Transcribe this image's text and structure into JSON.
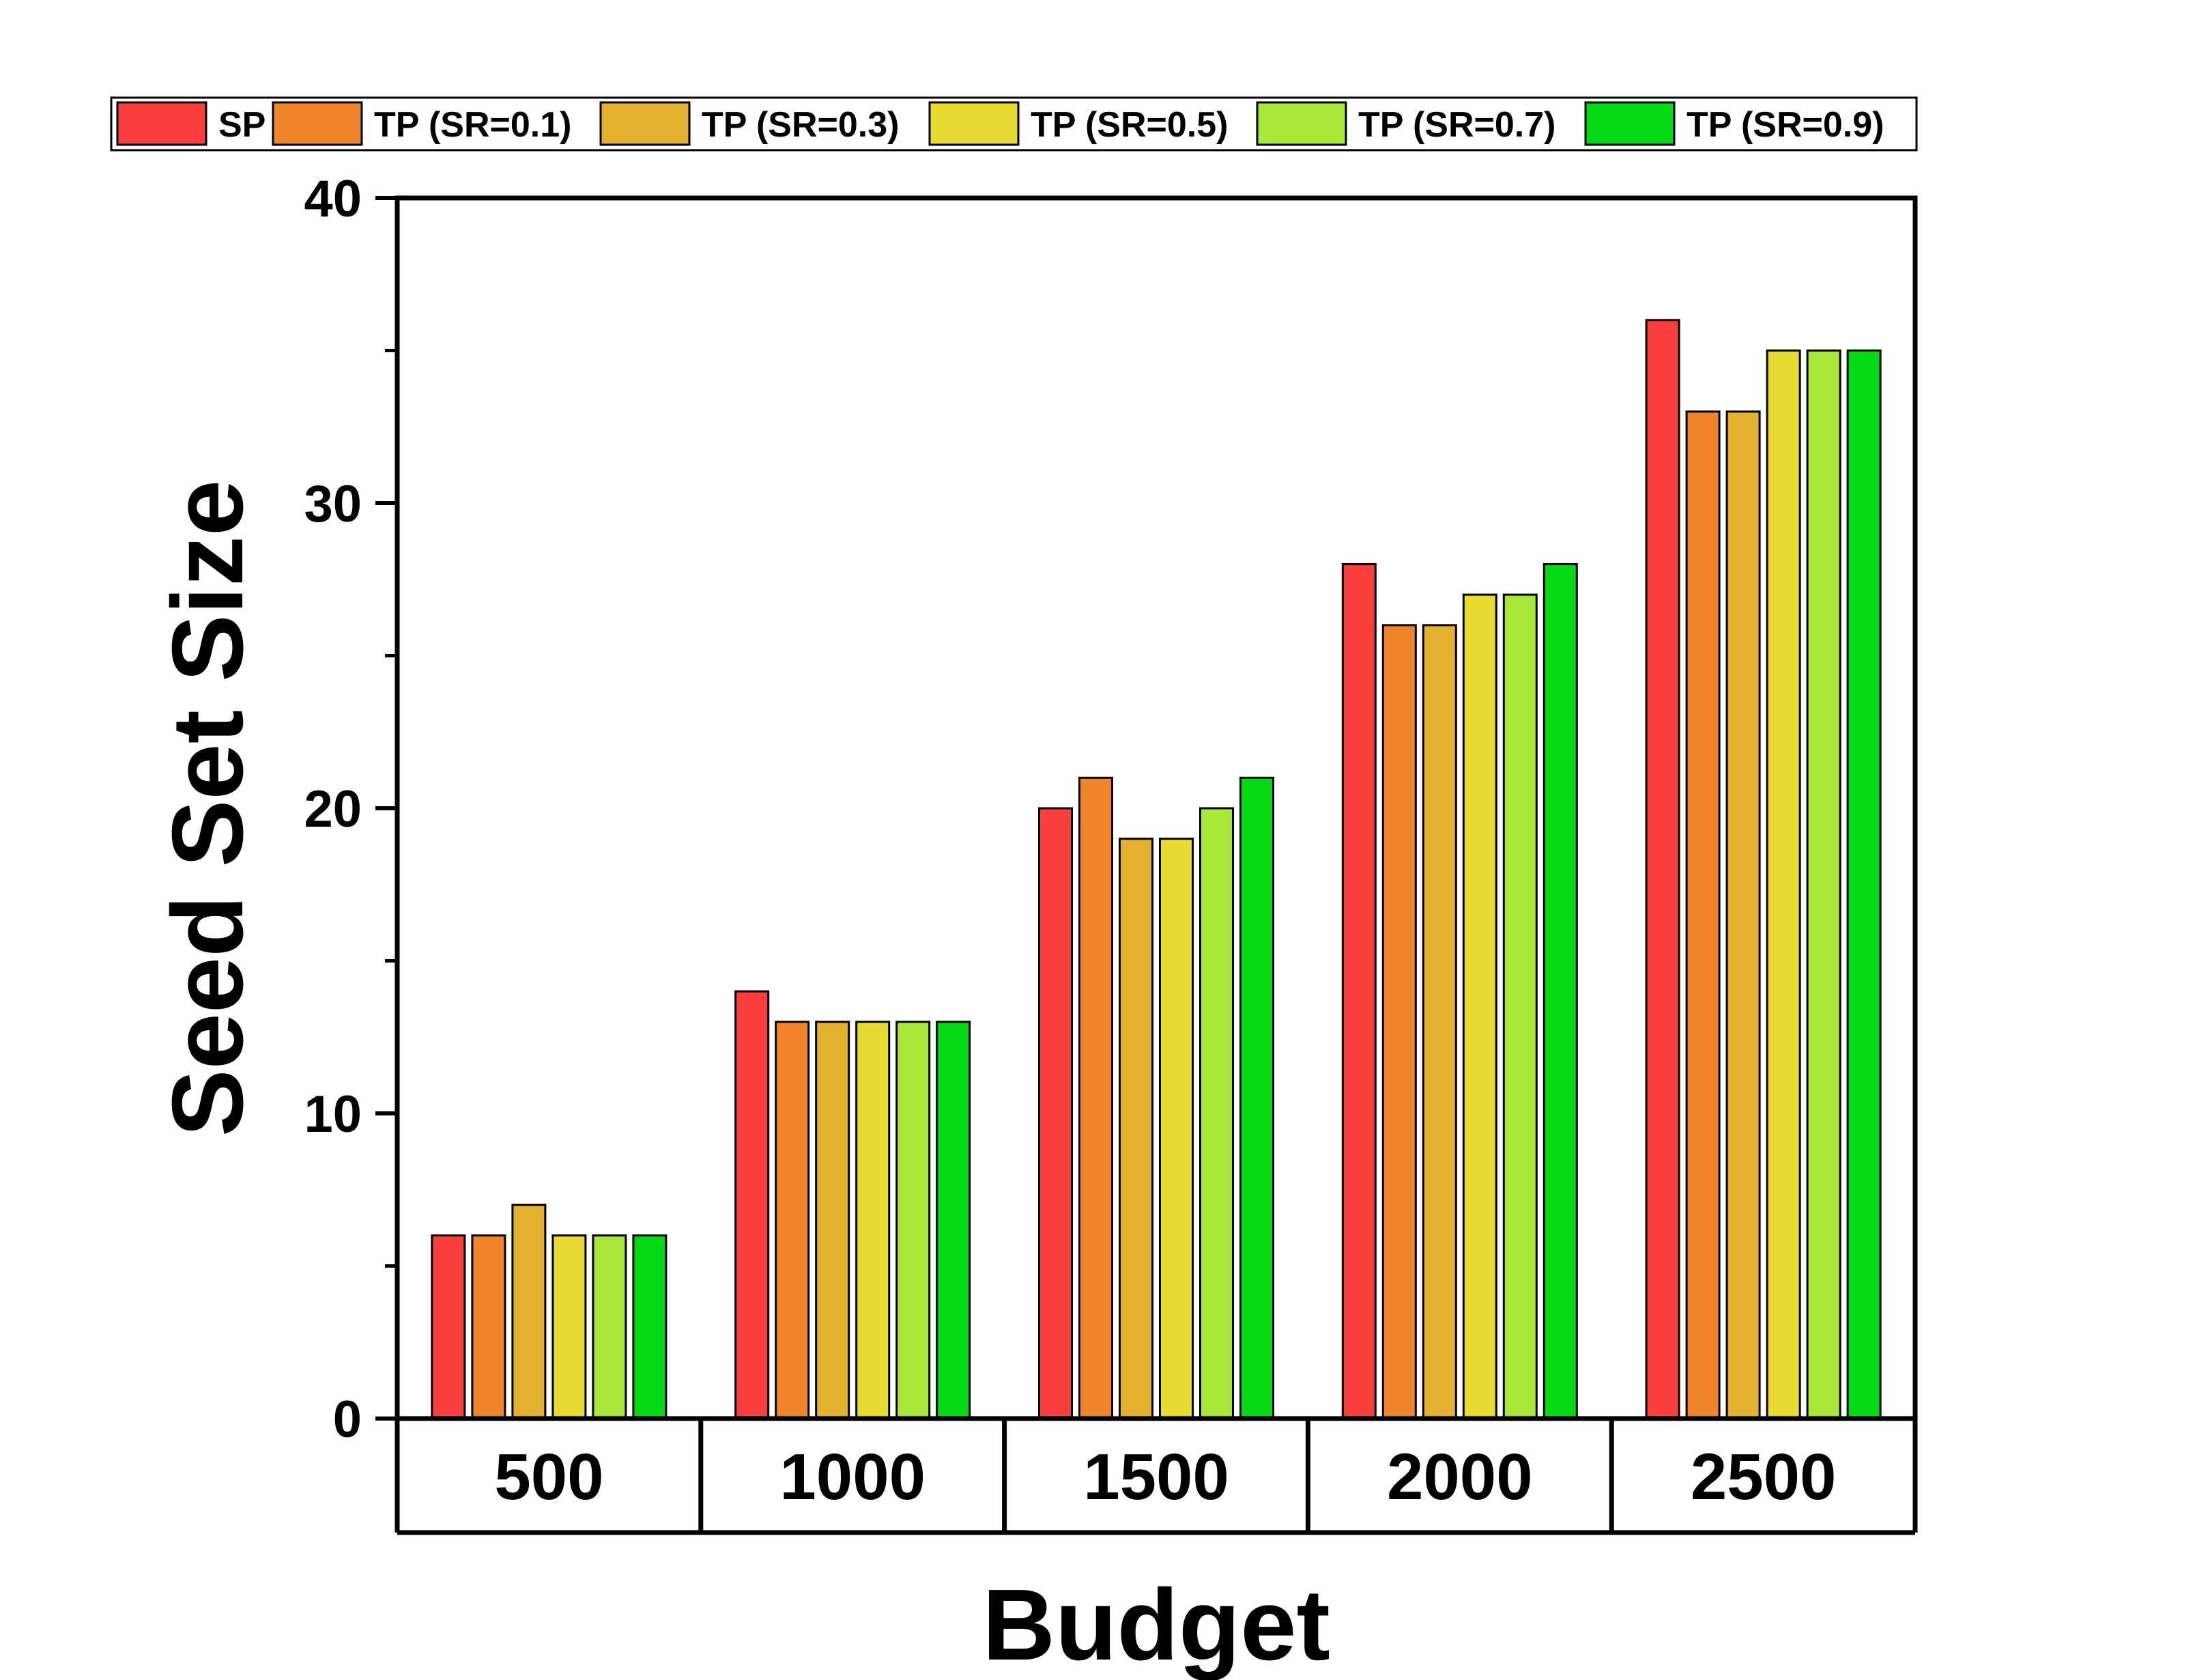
{
  "chart_data": {
    "type": "bar",
    "xlabel": "Budget",
    "ylabel": "Seed Set Size",
    "ylim": [
      0,
      40
    ],
    "yticks": [
      0,
      10,
      20,
      30,
      40
    ],
    "legend_position": "top",
    "categories": [
      "500",
      "1000",
      "1500",
      "2000",
      "2500"
    ],
    "series": [
      {
        "name": "SP",
        "color": "#f93e3e",
        "values": [
          6,
          14,
          20,
          28,
          36
        ]
      },
      {
        "name": "TP (SR=0.1)",
        "color": "#f0842a",
        "values": [
          6,
          13,
          21,
          26,
          33
        ]
      },
      {
        "name": "TP (SR=0.3)",
        "color": "#e4b030",
        "values": [
          7,
          13,
          19,
          26,
          33
        ]
      },
      {
        "name": "TP (SR=0.5)",
        "color": "#e8dc32",
        "values": [
          6,
          13,
          19,
          27,
          35
        ]
      },
      {
        "name": "TP (SR=0.7)",
        "color": "#a8e63a",
        "values": [
          6,
          13,
          20,
          27,
          35
        ]
      },
      {
        "name": "TP (SR=0.9)",
        "color": "#05d915",
        "values": [
          6,
          13,
          21,
          28,
          35
        ]
      }
    ]
  }
}
